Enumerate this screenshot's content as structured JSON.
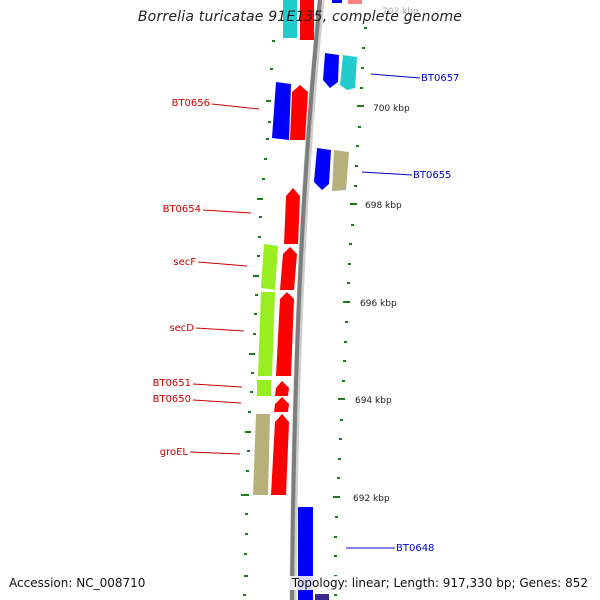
{
  "title": "Borrelia turicatae 91E135, complete genome",
  "accession_text": "Accession: NC_008710",
  "topology_text": "Topology: linear; Length: 917,330 bp; Genes: 852",
  "colors": {
    "backbone": "#8a8a8a",
    "tick": "#1f7a1f",
    "left_label": "#cc0000",
    "right_label": "#0000cc",
    "scale_label": "#222222",
    "red": "#ff0000",
    "blue": "#0000ff",
    "cyan": "#22cccc",
    "tan": "#b8b07a",
    "lime": "#99ee22"
  },
  "scale_labels": [
    "702 kbp",
    "700 kbp",
    "698 kbp",
    "696 kbp",
    "694 kbp",
    "692 kbp"
  ],
  "gene_labels_left": [
    "BT0656",
    "BT0654",
    "secF",
    "secD",
    "BT0651",
    "BT0650",
    "groEL"
  ],
  "gene_labels_right": [
    "BT0657",
    "BT0655",
    "BT0648"
  ]
}
